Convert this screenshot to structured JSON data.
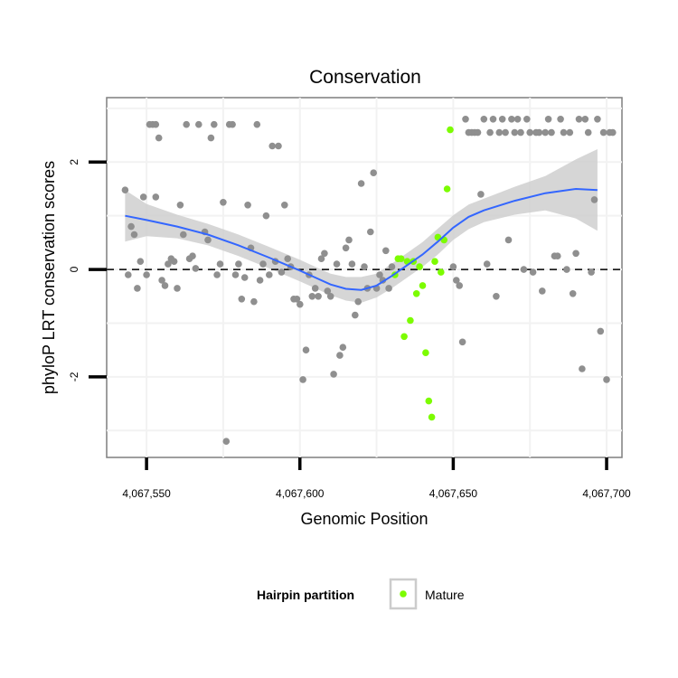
{
  "chart_data": {
    "type": "scatter",
    "title": "Conservation",
    "xlabel": "Genomic Position",
    "ylabel": "phyloP LRT conservation scores",
    "xlim": [
      4067537,
      4067705
    ],
    "ylim": [
      -3.5,
      3.2
    ],
    "x_ticks": [
      4067550,
      4067600,
      4067650,
      4067700
    ],
    "x_tick_labels": [
      "4,067,550",
      "4,067,600",
      "4,067,650",
      "4,067,700"
    ],
    "y_ticks": [
      -2,
      0,
      2
    ],
    "y_tick_labels": [
      "-2",
      "0",
      "2"
    ],
    "grid": true,
    "reference_line": {
      "y": 0,
      "style": "dashed"
    },
    "legend": {
      "title": "Hairpin partition",
      "position": "bottom",
      "entries": [
        {
          "label": "Mature",
          "color": "#7cfc00"
        }
      ]
    },
    "colors": {
      "other_points": "#8f8f8f",
      "mature_points": "#7cfc00",
      "smooth_line": "#3366ff",
      "ribbon": "#cccccc",
      "panel_border": "#7f7f7f"
    },
    "series": [
      {
        "color": "#8f8f8f",
        "points": [
          [
            4067543,
            1.48
          ],
          [
            4067544,
            -0.1
          ],
          [
            4067545,
            0.8
          ],
          [
            4067546,
            0.65
          ],
          [
            4067547,
            -0.35
          ],
          [
            4067548,
            0.15
          ],
          [
            4067549,
            1.35
          ],
          [
            4067550,
            -0.1
          ],
          [
            4067551,
            2.7
          ],
          [
            4067552,
            2.7
          ],
          [
            4067553,
            2.7
          ],
          [
            4067553,
            1.35
          ],
          [
            4067554,
            2.45
          ],
          [
            4067555,
            -0.2
          ],
          [
            4067556,
            -0.3
          ],
          [
            4067557,
            0.1
          ],
          [
            4067558,
            0.2
          ],
          [
            4067559,
            0.15
          ],
          [
            4067560,
            -0.35
          ],
          [
            4067561,
            1.2
          ],
          [
            4067562,
            0.65
          ],
          [
            4067563,
            2.7
          ],
          [
            4067564,
            0.2
          ],
          [
            4067565,
            0.25
          ],
          [
            4067566,
            0.02
          ],
          [
            4067567,
            2.7
          ],
          [
            4067569,
            0.7
          ],
          [
            4067570,
            0.55
          ],
          [
            4067571,
            2.45
          ],
          [
            4067572,
            2.7
          ],
          [
            4067573,
            -0.1
          ],
          [
            4067574,
            0.1
          ],
          [
            4067575,
            1.25
          ],
          [
            4067576,
            -3.2
          ],
          [
            4067577,
            2.7
          ],
          [
            4067578,
            2.7
          ],
          [
            4067579,
            -0.1
          ],
          [
            4067580,
            0.1
          ],
          [
            4067581,
            -0.55
          ],
          [
            4067582,
            -0.15
          ],
          [
            4067583,
            1.2
          ],
          [
            4067584,
            0.4
          ],
          [
            4067585,
            -0.6
          ],
          [
            4067586,
            2.7
          ],
          [
            4067587,
            -0.2
          ],
          [
            4067588,
            0.1
          ],
          [
            4067589,
            1.0
          ],
          [
            4067590,
            -0.1
          ],
          [
            4067591,
            2.3
          ],
          [
            4067592,
            0.15
          ],
          [
            4067593,
            2.3
          ],
          [
            4067594,
            -0.05
          ],
          [
            4067595,
            1.2
          ],
          [
            4067596,
            0.2
          ],
          [
            4067597,
            0.05
          ],
          [
            4067598,
            -0.55
          ],
          [
            4067599,
            -0.55
          ],
          [
            4067600,
            -0.65
          ],
          [
            4067601,
            -2.05
          ],
          [
            4067602,
            -1.5
          ],
          [
            4067603,
            -0.1
          ],
          [
            4067604,
            -0.5
          ],
          [
            4067605,
            -0.35
          ],
          [
            4067606,
            -0.5
          ],
          [
            4067607,
            0.2
          ],
          [
            4067608,
            0.3
          ],
          [
            4067609,
            -0.4
          ],
          [
            4067610,
            -0.5
          ],
          [
            4067611,
            -1.95
          ],
          [
            4067612,
            0.1
          ],
          [
            4067613,
            -1.6
          ],
          [
            4067614,
            -1.45
          ],
          [
            4067615,
            0.4
          ],
          [
            4067616,
            0.55
          ],
          [
            4067617,
            0.1
          ],
          [
            4067618,
            -0.85
          ],
          [
            4067619,
            -0.6
          ],
          [
            4067620,
            1.6
          ],
          [
            4067621,
            0.05
          ],
          [
            4067622,
            -0.35
          ],
          [
            4067623,
            0.7
          ],
          [
            4067624,
            1.8
          ],
          [
            4067625,
            -0.35
          ],
          [
            4067626,
            -0.1
          ],
          [
            4067627,
            -0.2
          ],
          [
            4067628,
            0.35
          ],
          [
            4067629,
            -0.35
          ],
          [
            4067630,
            0.05
          ],
          [
            4067650,
            0.05
          ],
          [
            4067651,
            -0.2
          ],
          [
            4067652,
            -0.3
          ],
          [
            4067653,
            -1.35
          ],
          [
            4067654,
            2.8
          ],
          [
            4067655,
            2.55
          ],
          [
            4067656,
            2.55
          ],
          [
            4067657,
            2.55
          ],
          [
            4067658,
            2.55
          ],
          [
            4067659,
            1.4
          ],
          [
            4067660,
            2.8
          ],
          [
            4067661,
            0.1
          ],
          [
            4067662,
            2.55
          ],
          [
            4067663,
            2.8
          ],
          [
            4067664,
            -0.5
          ],
          [
            4067665,
            2.55
          ],
          [
            4067666,
            2.8
          ],
          [
            4067667,
            2.55
          ],
          [
            4067668,
            0.55
          ],
          [
            4067669,
            2.8
          ],
          [
            4067670,
            2.55
          ],
          [
            4067671,
            2.8
          ],
          [
            4067672,
            2.55
          ],
          [
            4067673,
            0.0
          ],
          [
            4067674,
            2.8
          ],
          [
            4067675,
            2.55
          ],
          [
            4067676,
            -0.05
          ],
          [
            4067677,
            2.55
          ],
          [
            4067678,
            2.55
          ],
          [
            4067679,
            -0.4
          ],
          [
            4067680,
            2.55
          ],
          [
            4067681,
            2.8
          ],
          [
            4067682,
            2.55
          ],
          [
            4067683,
            0.25
          ],
          [
            4067684,
            0.25
          ],
          [
            4067685,
            2.8
          ],
          [
            4067686,
            2.55
          ],
          [
            4067687,
            0.0
          ],
          [
            4067688,
            2.55
          ],
          [
            4067689,
            -0.45
          ],
          [
            4067690,
            0.3
          ],
          [
            4067691,
            2.8
          ],
          [
            4067692,
            -1.85
          ],
          [
            4067693,
            2.8
          ],
          [
            4067694,
            2.55
          ],
          [
            4067695,
            -0.05
          ],
          [
            4067696,
            1.3
          ],
          [
            4067697,
            2.8
          ],
          [
            4067698,
            -1.15
          ],
          [
            4067699,
            2.55
          ],
          [
            4067700,
            -2.05
          ],
          [
            4067701,
            2.55
          ],
          [
            4067702,
            2.55
          ]
        ]
      },
      {
        "name": "Mature",
        "color": "#7cfc00",
        "points": [
          [
            4067631,
            -0.1
          ],
          [
            4067632,
            0.2
          ],
          [
            4067633,
            0.2
          ],
          [
            4067634,
            -1.25
          ],
          [
            4067635,
            0.15
          ],
          [
            4067636,
            -0.95
          ],
          [
            4067637,
            0.15
          ],
          [
            4067638,
            -0.45
          ],
          [
            4067639,
            0.05
          ],
          [
            4067640,
            -0.3
          ],
          [
            4067641,
            -1.55
          ],
          [
            4067642,
            -2.45
          ],
          [
            4067643,
            -2.75
          ],
          [
            4067644,
            0.15
          ],
          [
            4067645,
            0.6
          ],
          [
            4067646,
            -0.05
          ],
          [
            4067647,
            0.55
          ],
          [
            4067648,
            1.5
          ],
          [
            4067649,
            2.6
          ]
        ]
      }
    ],
    "smooth": {
      "x": [
        4067543,
        4067550,
        4067560,
        4067570,
        4067580,
        4067590,
        4067600,
        4067605,
        4067610,
        4067615,
        4067620,
        4067625,
        4067630,
        4067635,
        4067640,
        4067645,
        4067650,
        4067655,
        4067660,
        4067670,
        4067680,
        4067690,
        4067697
      ],
      "y": [
        1.0,
        0.92,
        0.8,
        0.65,
        0.45,
        0.22,
        -0.02,
        -0.15,
        -0.28,
        -0.36,
        -0.38,
        -0.3,
        -0.12,
        0.08,
        0.28,
        0.52,
        0.78,
        0.98,
        1.1,
        1.28,
        1.42,
        1.5,
        1.48
      ],
      "lower": [
        0.52,
        0.62,
        0.58,
        0.45,
        0.25,
        0.02,
        -0.22,
        -0.35,
        -0.48,
        -0.58,
        -0.62,
        -0.52,
        -0.35,
        -0.15,
        0.05,
        0.28,
        0.55,
        0.75,
        0.88,
        1.02,
        1.1,
        0.95,
        0.72
      ],
      "upper": [
        1.48,
        1.22,
        1.02,
        0.85,
        0.65,
        0.42,
        0.18,
        0.05,
        -0.08,
        -0.14,
        -0.14,
        -0.08,
        0.11,
        0.31,
        0.51,
        0.76,
        1.01,
        1.21,
        1.32,
        1.54,
        1.74,
        2.05,
        2.24
      ]
    }
  }
}
